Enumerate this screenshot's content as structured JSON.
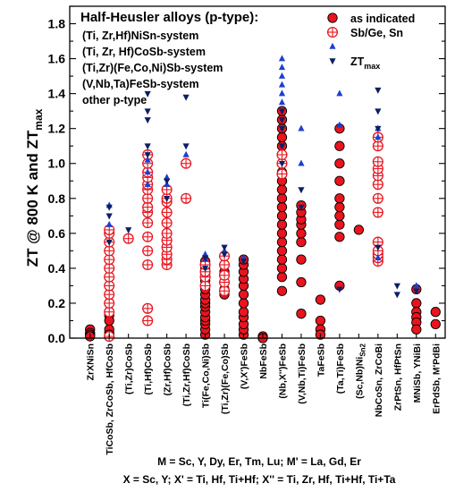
{
  "chart_data": {
    "type": "scatter",
    "ylabel": "ZT @ 800 K and ZT",
    "ylabel_sub": "max",
    "ylim": [
      0,
      1.9
    ],
    "yticks": [
      "0.0",
      "0.2",
      "0.4",
      "0.6",
      "0.8",
      "1.0",
      "1.2",
      "1.4",
      "1.6",
      "1.8"
    ],
    "categories": [
      "ZrXNiSn",
      "TiCoSb, ZrCoSb, HfCoSb",
      "(Ti,Zr)CoSb",
      "(Ti,Hf)CoSb",
      "(Zr,Hf)CoSb",
      "(Ti,Zr,Hf)CoSb",
      "Ti(Fe,Co,Ni)Sb",
      "(Ti,Zr)(Fe,Co)Sb",
      "(V,X')FeSb",
      "NbFeSb",
      "(Nb,X'')FeSb",
      "(V,Nb,Ti)FeSb",
      "TaFeSb",
      "(Ta,Ti)FeSb",
      "(Sc,Nb)Ni",
      "NbCoSn, ZrCoBi",
      "ZrPtSn, HfPtSn",
      "MNiSb, YNiBi",
      "ErPdSb, M'PdBi"
    ],
    "category_subscripts": [
      "",
      "",
      "",
      "",
      "",
      "",
      "",
      "",
      "",
      "",
      "",
      "",
      "",
      "",
      "Sn2",
      "",
      "",
      "",
      ""
    ],
    "group_title": "Half-Heusler alloys (p-type):",
    "group_items": [
      "(Ti, Zr,Hf)NiSn-system",
      "(Ti, Zr, Hf)CoSb-system",
      "(Ti,Zr)(Fe,Co,Ni)Sb-system",
      "(V,Nb,Ta)FeSb-system",
      "other p-type"
    ],
    "legend": [
      {
        "marker": "filled-circle",
        "label": "as indicated",
        "sub": ""
      },
      {
        "marker": "crossed-circle",
        "label": "Sb/Ge, Sn",
        "sub": ""
      },
      {
        "marker": "up-triangle",
        "label": "",
        "sub": ""
      },
      {
        "marker": "down-triangle",
        "label": "ZT",
        "sub": "max"
      }
    ],
    "series": [
      {
        "marker": "filled-circle",
        "points": [
          [
            0,
            0.05
          ],
          [
            0,
            0.03
          ],
          [
            0,
            0.02
          ],
          [
            0,
            0.01
          ],
          [
            1,
            0.03
          ],
          [
            1,
            0.05
          ],
          [
            1,
            0.13
          ],
          [
            1,
            0.1
          ],
          [
            1,
            0.02
          ],
          [
            2,
            0.57
          ],
          [
            6,
            0.02
          ],
          [
            6,
            0.05
          ],
          [
            6,
            0.08
          ],
          [
            6,
            0.1
          ],
          [
            6,
            0.12
          ],
          [
            6,
            0.15
          ],
          [
            6,
            0.18
          ],
          [
            6,
            0.2
          ],
          [
            6,
            0.22
          ],
          [
            6,
            0.25
          ],
          [
            6,
            0.28
          ],
          [
            6,
            0.3
          ],
          [
            6,
            0.33
          ],
          [
            6,
            0.36
          ],
          [
            6,
            0.4
          ],
          [
            6,
            0.42
          ],
          [
            6,
            0.44
          ],
          [
            7,
            0.32
          ],
          [
            7,
            0.28
          ],
          [
            7,
            0.25
          ],
          [
            7,
            0.38
          ],
          [
            8,
            0.02
          ],
          [
            8,
            0.05
          ],
          [
            8,
            0.08
          ],
          [
            8,
            0.12
          ],
          [
            8,
            0.15
          ],
          [
            8,
            0.2
          ],
          [
            8,
            0.25
          ],
          [
            8,
            0.3
          ],
          [
            8,
            0.34
          ],
          [
            8,
            0.38
          ],
          [
            8,
            0.42
          ],
          [
            8,
            0.45
          ],
          [
            9,
            0.01
          ],
          [
            9,
            0.0
          ],
          [
            10,
            0.27
          ],
          [
            10,
            0.35
          ],
          [
            10,
            0.4
          ],
          [
            10,
            0.45
          ],
          [
            10,
            0.5
          ],
          [
            10,
            0.55
          ],
          [
            10,
            0.6
          ],
          [
            10,
            0.65
          ],
          [
            10,
            0.7
          ],
          [
            10,
            0.75
          ],
          [
            10,
            0.8
          ],
          [
            10,
            0.85
          ],
          [
            10,
            0.9
          ],
          [
            10,
            0.95
          ],
          [
            10,
            1.0
          ],
          [
            10,
            1.05
          ],
          [
            10,
            1.1
          ],
          [
            10,
            1.15
          ],
          [
            10,
            1.2
          ],
          [
            10,
            1.25
          ],
          [
            10,
            1.3
          ],
          [
            11,
            0.14
          ],
          [
            11,
            0.32
          ],
          [
            11,
            0.45
          ],
          [
            11,
            0.55
          ],
          [
            11,
            0.6
          ],
          [
            11,
            0.65
          ],
          [
            11,
            0.68
          ],
          [
            11,
            0.72
          ],
          [
            11,
            0.76
          ],
          [
            12,
            0.1
          ],
          [
            12,
            0.05
          ],
          [
            12,
            0.02
          ],
          [
            12,
            0.22
          ],
          [
            13,
            0.3
          ],
          [
            13,
            0.58
          ],
          [
            13,
            0.65
          ],
          [
            13,
            0.7
          ],
          [
            13,
            0.75
          ],
          [
            13,
            0.8
          ],
          [
            13,
            0.9
          ],
          [
            13,
            1.0
          ],
          [
            13,
            1.1
          ],
          [
            13,
            1.2
          ],
          [
            14,
            0.62
          ],
          [
            17,
            0.28
          ],
          [
            17,
            0.2
          ],
          [
            17,
            0.15
          ],
          [
            17,
            0.12
          ],
          [
            17,
            0.09
          ],
          [
            17,
            0.05
          ],
          [
            18,
            0.15
          ],
          [
            18,
            0.08
          ]
        ]
      },
      {
        "marker": "crossed-circle",
        "points": [
          [
            1,
            0.01
          ],
          [
            1,
            0.15
          ],
          [
            1,
            0.2
          ],
          [
            1,
            0.25
          ],
          [
            1,
            0.3
          ],
          [
            1,
            0.35
          ],
          [
            1,
            0.4
          ],
          [
            1,
            0.45
          ],
          [
            1,
            0.5
          ],
          [
            1,
            0.55
          ],
          [
            1,
            0.6
          ],
          [
            1,
            0.62
          ],
          [
            2,
            0.57
          ],
          [
            3,
            0.1
          ],
          [
            3,
            0.17
          ],
          [
            3,
            0.42
          ],
          [
            3,
            0.5
          ],
          [
            3,
            0.58
          ],
          [
            3,
            0.66
          ],
          [
            3,
            0.72
          ],
          [
            3,
            0.75
          ],
          [
            3,
            0.8
          ],
          [
            3,
            0.85
          ],
          [
            3,
            0.88
          ],
          [
            3,
            0.92
          ],
          [
            3,
            0.95
          ],
          [
            3,
            1.0
          ],
          [
            3,
            1.05
          ],
          [
            4,
            0.42
          ],
          [
            4,
            0.45
          ],
          [
            4,
            0.48
          ],
          [
            4,
            0.52
          ],
          [
            4,
            0.56
          ],
          [
            4,
            0.6
          ],
          [
            4,
            0.66
          ],
          [
            4,
            0.72
          ],
          [
            4,
            0.78
          ],
          [
            4,
            0.8
          ],
          [
            4,
            0.85
          ],
          [
            5,
            0.8
          ],
          [
            5,
            1.0
          ],
          [
            6,
            0.3
          ],
          [
            6,
            0.35
          ],
          [
            6,
            0.38
          ],
          [
            6,
            0.42
          ],
          [
            7,
            0.27
          ],
          [
            7,
            0.32
          ],
          [
            7,
            0.36
          ],
          [
            7,
            0.42
          ],
          [
            7,
            0.47
          ],
          [
            10,
            0.94
          ],
          [
            10,
            1.0
          ],
          [
            10,
            1.05
          ],
          [
            15,
            0.44
          ],
          [
            15,
            0.46
          ],
          [
            15,
            0.48
          ],
          [
            15,
            0.5
          ],
          [
            15,
            0.55
          ],
          [
            15,
            0.72
          ],
          [
            15,
            0.8
          ],
          [
            15,
            0.88
          ],
          [
            15,
            0.93
          ],
          [
            15,
            0.97
          ],
          [
            15,
            1.01
          ],
          [
            15,
            1.1
          ],
          [
            15,
            1.15
          ]
        ]
      },
      {
        "marker": "up-triangle",
        "points": [
          [
            1,
            0.76
          ],
          [
            1,
            0.65
          ],
          [
            3,
            1.02
          ],
          [
            3,
            0.95
          ],
          [
            3,
            0.88
          ],
          [
            4,
            0.88
          ],
          [
            4,
            0.92
          ],
          [
            5,
            1.05
          ],
          [
            6,
            0.45
          ],
          [
            6,
            0.48
          ],
          [
            7,
            0.5
          ],
          [
            8,
            0.46
          ],
          [
            10,
            1.35
          ],
          [
            10,
            1.4
          ],
          [
            10,
            1.45
          ],
          [
            10,
            1.5
          ],
          [
            10,
            1.55
          ],
          [
            10,
            1.6
          ],
          [
            11,
            1.0
          ],
          [
            11,
            1.2
          ],
          [
            13,
            1.4
          ],
          [
            13,
            1.22
          ],
          [
            15,
            1.15
          ],
          [
            15,
            1.2
          ],
          [
            15,
            0.46
          ],
          [
            17,
            0.3
          ]
        ]
      },
      {
        "marker": "down-triangle",
        "points": [
          [
            1,
            0.75
          ],
          [
            1,
            0.7
          ],
          [
            1,
            0.55
          ],
          [
            2,
            0.62
          ],
          [
            3,
            1.4
          ],
          [
            3,
            1.3
          ],
          [
            3,
            1.25
          ],
          [
            3,
            1.1
          ],
          [
            3,
            1.05
          ],
          [
            4,
            0.9
          ],
          [
            4,
            0.8
          ],
          [
            5,
            1.38
          ],
          [
            5,
            1.1
          ],
          [
            6,
            0.46
          ],
          [
            6,
            0.4
          ],
          [
            7,
            0.52
          ],
          [
            7,
            0.48
          ],
          [
            8,
            0.44
          ],
          [
            10,
            1.3
          ],
          [
            10,
            1.25
          ],
          [
            10,
            1.2
          ],
          [
            10,
            1.1
          ],
          [
            10,
            1.0
          ],
          [
            11,
            0.85
          ],
          [
            11,
            0.75
          ],
          [
            13,
            0.28
          ],
          [
            15,
            1.42
          ],
          [
            15,
            1.3
          ],
          [
            15,
            1.2
          ],
          [
            15,
            0.52
          ],
          [
            16,
            0.3
          ],
          [
            16,
            0.25
          ],
          [
            17,
            0.27
          ]
        ]
      }
    ]
  },
  "footnotes": [
    "M = Sc, Y, Dy, Er, Tm, Lu;  M' = La, Gd, Er",
    "X = Sc, Y; X' = Ti, Hf, Ti+Hf; X'' = Ti, Zr, Hf, Ti+Hf, Ti+Ta"
  ]
}
